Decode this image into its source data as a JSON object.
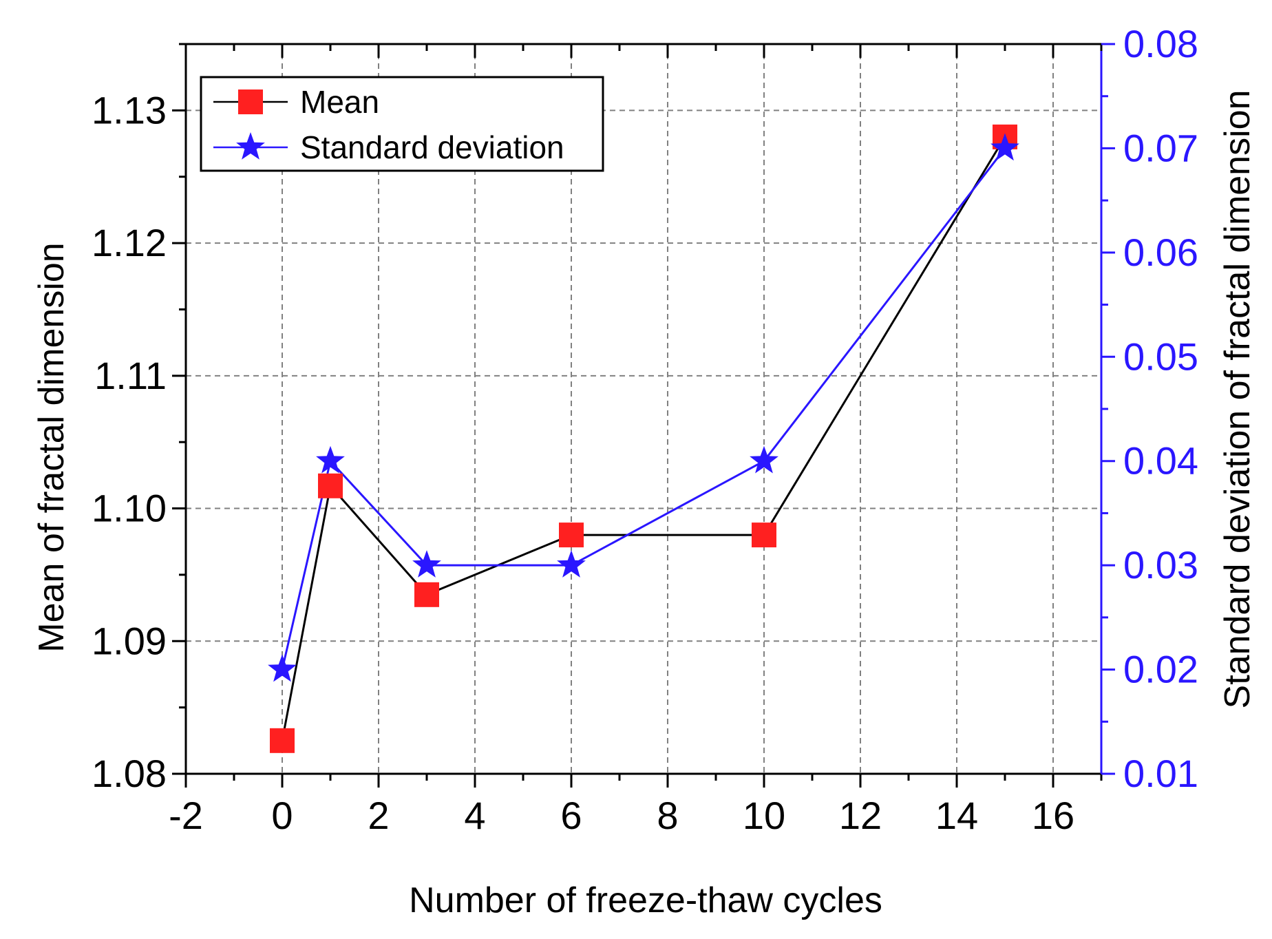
{
  "chart_data": {
    "type": "line",
    "xlabel": "Number of freeze-thaw cycles",
    "ylabel": "Mean of fractal dimension",
    "y2label": "Standard deviation of fractal dimension",
    "xlim": [
      -2,
      17
    ],
    "ylim": [
      1.08,
      1.135
    ],
    "y2lim": [
      0.01,
      0.08
    ],
    "x_ticks": [
      -2,
      0,
      2,
      4,
      6,
      8,
      10,
      12,
      14,
      16
    ],
    "x_tick_labels": [
      "-2",
      "0",
      "2",
      "4",
      "6",
      "8",
      "10",
      "12",
      "14",
      "16"
    ],
    "y_ticks": [
      1.08,
      1.09,
      1.1,
      1.11,
      1.12,
      1.13
    ],
    "y_tick_labels": [
      "1.08",
      "1.09",
      "1.10",
      "1.11",
      "1.12",
      "1.13"
    ],
    "y2_ticks": [
      0.01,
      0.02,
      0.03,
      0.04,
      0.05,
      0.06,
      0.07,
      0.08
    ],
    "y2_tick_labels": [
      "0.01",
      "0.02",
      "0.03",
      "0.04",
      "0.05",
      "0.06",
      "0.07",
      "0.08"
    ],
    "grid": true,
    "legend_position": "top-left",
    "x": [
      0,
      1,
      3,
      6,
      10,
      15
    ],
    "series": [
      {
        "name": "Mean",
        "axis": "left",
        "marker": "square",
        "line_color": "#000000",
        "marker_color": "#ff2020",
        "values": [
          1.0825,
          1.1017,
          1.0935,
          1.098,
          1.098,
          1.128
        ]
      },
      {
        "name": "Standard deviation",
        "axis": "right",
        "marker": "star",
        "line_color": "#2a16ff",
        "marker_color": "#2a16ff",
        "values": [
          0.02,
          0.04,
          0.03,
          0.03,
          0.04,
          0.07
        ]
      }
    ],
    "right_axis_color": "#2a16ff"
  }
}
